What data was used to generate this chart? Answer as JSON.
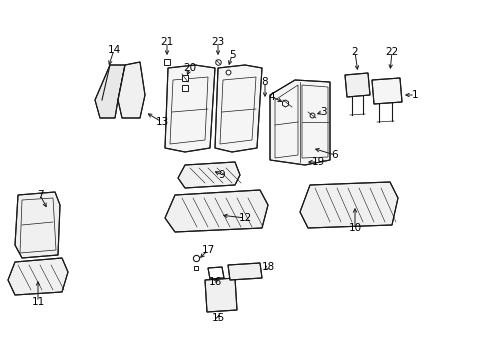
{
  "bg_color": "#ffffff",
  "fig_width": 4.89,
  "fig_height": 3.6,
  "dpi": 100,
  "line_color": "#1a1a1a",
  "text_color": "#000000",
  "label_fontsize": 7.5
}
